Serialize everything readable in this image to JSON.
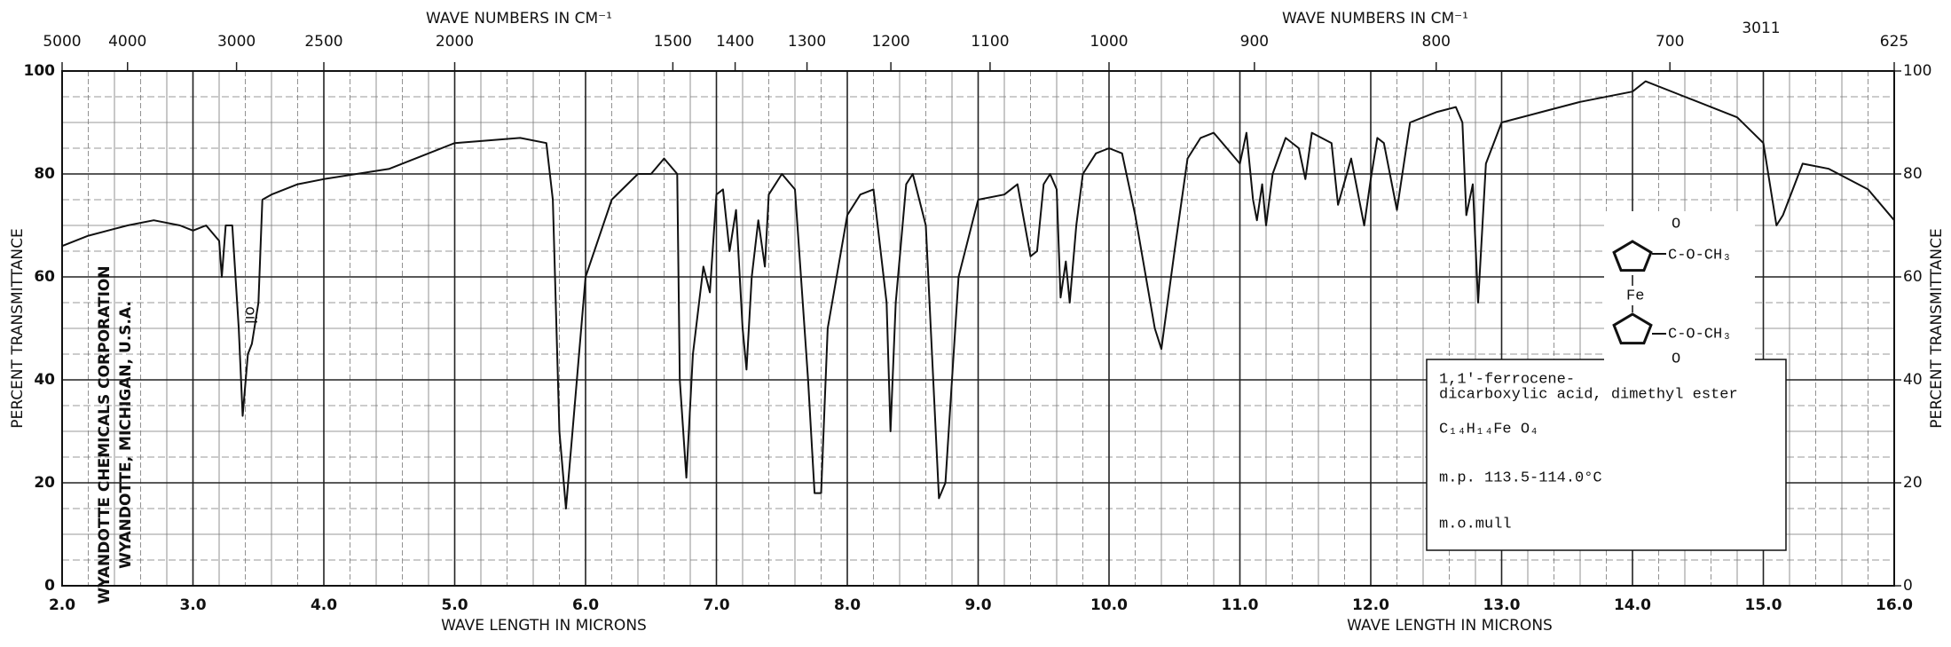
{
  "chart_data": {
    "type": "line",
    "chart_number": "3011",
    "top_axis_labels": [
      "WAVE NUMBERS IN CM⁻¹",
      "WAVE NUMBERS IN CM⁻¹"
    ],
    "x_axis_labels": [
      "WAVE LENGTH IN MICRONS",
      "WAVE LENGTH IN MICRONS"
    ],
    "y_axis_label": "PERCENT TRANSMITTANCE",
    "y2_axis_label": "PERCENT TRANSMITTANCE",
    "xlim": [
      2.0,
      16.0
    ],
    "ylim": [
      0,
      100
    ],
    "y2lim": [
      0,
      100
    ],
    "xticks": [
      {
        "value": 2,
        "label": "2.0"
      },
      {
        "value": 3,
        "label": "3.0"
      },
      {
        "value": 4,
        "label": "4.0"
      },
      {
        "value": 5,
        "label": "5.0"
      },
      {
        "value": 6,
        "label": "6.0"
      },
      {
        "value": 7,
        "label": "7.0"
      },
      {
        "value": 8,
        "label": "8.0"
      },
      {
        "value": 9,
        "label": "9.0"
      },
      {
        "value": 10,
        "label": "10.0"
      },
      {
        "value": 11,
        "label": "11.0"
      },
      {
        "value": 12,
        "label": "12.0"
      },
      {
        "value": 13,
        "label": "13.0"
      },
      {
        "value": 14,
        "label": "14.0"
      },
      {
        "value": 15,
        "label": "15.0"
      },
      {
        "value": 16,
        "label": "16.0"
      }
    ],
    "x2ticks": [
      {
        "value": 2.0,
        "label": "5000"
      },
      {
        "value": 2.5,
        "label": "4000"
      },
      {
        "value": 3.333,
        "label": "3000"
      },
      {
        "value": 4.0,
        "label": "2500"
      },
      {
        "value": 5.0,
        "label": "2000"
      },
      {
        "value": 6.667,
        "label": "1500"
      },
      {
        "value": 7.143,
        "label": "1400"
      },
      {
        "value": 7.692,
        "label": "1300"
      },
      {
        "value": 8.333,
        "label": "1200"
      },
      {
        "value": 9.091,
        "label": "1100"
      },
      {
        "value": 10.0,
        "label": "1000"
      },
      {
        "value": 11.111,
        "label": "900"
      },
      {
        "value": 12.5,
        "label": "800"
      },
      {
        "value": 14.286,
        "label": "700"
      },
      {
        "value": 16.0,
        "label": "625"
      }
    ],
    "yticks": [
      0,
      20,
      40,
      60,
      80,
      100
    ],
    "y2ticks": [
      0,
      20,
      40,
      60,
      80,
      100
    ],
    "grid": true,
    "minor_grid": {
      "x": 0.2,
      "y": 5
    },
    "color": "#111111",
    "x": [
      2.0,
      2.2,
      2.5,
      2.7,
      2.9,
      3.0,
      3.1,
      3.2,
      3.22,
      3.25,
      3.3,
      3.35,
      3.38,
      3.42,
      3.45,
      3.5,
      3.53,
      3.6,
      3.8,
      4.0,
      4.5,
      5.0,
      5.5,
      5.7,
      5.75,
      5.8,
      5.85,
      5.9,
      6.0,
      6.2,
      6.4,
      6.5,
      6.6,
      6.7,
      6.72,
      6.77,
      6.82,
      6.9,
      6.95,
      7.0,
      7.05,
      7.1,
      7.15,
      7.2,
      7.23,
      7.27,
      7.32,
      7.37,
      7.4,
      7.5,
      7.6,
      7.7,
      7.75,
      7.8,
      7.85,
      8.0,
      8.1,
      8.2,
      8.3,
      8.33,
      8.37,
      8.45,
      8.5,
      8.6,
      8.7,
      8.75,
      8.85,
      9.0,
      9.2,
      9.3,
      9.4,
      9.45,
      9.5,
      9.55,
      9.6,
      9.63,
      9.67,
      9.7,
      9.75,
      9.8,
      9.9,
      10.0,
      10.1,
      10.2,
      10.35,
      10.4,
      10.5,
      10.6,
      10.7,
      10.8,
      10.9,
      11.0,
      11.05,
      11.1,
      11.13,
      11.17,
      11.2,
      11.25,
      11.35,
      11.45,
      11.5,
      11.55,
      11.7,
      11.75,
      11.85,
      11.95,
      12.0,
      12.05,
      12.1,
      12.2,
      12.3,
      12.5,
      12.65,
      12.7,
      12.73,
      12.78,
      12.82,
      12.88,
      13.0,
      13.3,
      13.6,
      14.0,
      14.1,
      14.4,
      14.8,
      15.0,
      15.05,
      15.1,
      15.15,
      15.3,
      15.5,
      15.8,
      16.0
    ],
    "values": [
      66,
      68,
      70,
      71,
      70,
      69,
      70,
      67,
      60,
      70,
      70,
      50,
      33,
      45,
      47,
      55,
      75,
      76,
      78,
      79,
      81,
      86,
      87,
      86,
      75,
      30,
      15,
      30,
      60,
      75,
      80,
      80,
      83,
      80,
      40,
      21,
      45,
      62,
      57,
      76,
      77,
      65,
      73,
      50,
      42,
      60,
      71,
      62,
      76,
      80,
      77,
      40,
      18,
      18,
      50,
      72,
      76,
      77,
      55,
      30,
      55,
      78,
      80,
      70,
      17,
      20,
      60,
      75,
      76,
      78,
      64,
      65,
      78,
      80,
      77,
      56,
      63,
      55,
      70,
      80,
      84,
      85,
      84,
      72,
      50,
      46,
      65,
      83,
      87,
      88,
      85,
      82,
      88,
      75,
      71,
      78,
      70,
      80,
      87,
      85,
      79,
      88,
      86,
      74,
      83,
      70,
      79,
      87,
      86,
      73,
      90,
      92,
      93,
      90,
      72,
      78,
      55,
      82,
      90,
      92,
      94,
      96,
      98,
      95,
      91,
      86,
      78,
      70,
      72,
      82,
      81,
      77,
      71
    ],
    "annotations": {
      "oil": "oil",
      "company": "WYANDOTTE CHEMICALS CORPORATION",
      "company_address": "WYANDOTTE, MICHIGAN, U.S.A.",
      "compound": [
        "1,1'-ferrocene-",
        "dicarboxylic acid, dimethyl ester",
        "C₁₄H₁₄Fe O₄",
        "m.p. 113.5-114.0°C",
        "m.o.mull"
      ],
      "structure": [
        "O",
        "C-O-CH₃",
        "Fe",
        "C-O-CH₃",
        "O"
      ]
    }
  }
}
